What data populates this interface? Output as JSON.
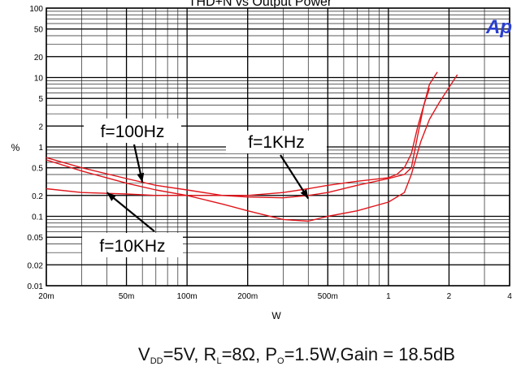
{
  "chart_data": {
    "type": "line",
    "title": "THD+N vs Output Power",
    "xlabel": "W",
    "ylabel": "%",
    "xscale": "log",
    "yscale": "log",
    "xlim": [
      0.02,
      4
    ],
    "ylim": [
      0.01,
      100
    ],
    "x_ticks": [
      {
        "value": 0.02,
        "label": "20m"
      },
      {
        "value": 0.05,
        "label": "50m"
      },
      {
        "value": 0.1,
        "label": "100m"
      },
      {
        "value": 0.2,
        "label": "200m"
      },
      {
        "value": 0.5,
        "label": "500m"
      },
      {
        "value": 1,
        "label": "1"
      },
      {
        "value": 2,
        "label": "2"
      },
      {
        "value": 4,
        "label": "4"
      }
    ],
    "y_ticks": [
      {
        "value": 0.01,
        "label": "0.01"
      },
      {
        "value": 0.02,
        "label": "0.02"
      },
      {
        "value": 0.05,
        "label": "0.05"
      },
      {
        "value": 0.1,
        "label": "0.1"
      },
      {
        "value": 0.2,
        "label": "0.2"
      },
      {
        "value": 0.5,
        "label": "0.5"
      },
      {
        "value": 1,
        "label": "1"
      },
      {
        "value": 2,
        "label": "2"
      },
      {
        "value": 5,
        "label": "5"
      },
      {
        "value": 10,
        "label": "10"
      },
      {
        "value": 20,
        "label": "20"
      },
      {
        "value": 50,
        "label": "50"
      },
      {
        "value": 100,
        "label": "100"
      }
    ],
    "grid": true,
    "line_color": "#e0151b",
    "logo": "Ap",
    "series": [
      {
        "name": "f=100Hz",
        "x": [
          0.02,
          0.03,
          0.05,
          0.07,
          0.1,
          0.15,
          0.2,
          0.3,
          0.4,
          0.5,
          0.7,
          1.0,
          1.2,
          1.3,
          1.4,
          1.5,
          1.6,
          1.75
        ],
        "y": [
          0.7,
          0.5,
          0.35,
          0.28,
          0.24,
          0.2,
          0.19,
          0.185,
          0.2,
          0.22,
          0.28,
          0.35,
          0.4,
          0.5,
          1.5,
          4.0,
          8.0,
          12
        ]
      },
      {
        "name": "f=1KHz",
        "x": [
          0.02,
          0.03,
          0.05,
          0.07,
          0.1,
          0.15,
          0.2,
          0.3,
          0.4,
          0.5,
          0.7,
          1.0,
          1.2,
          1.3,
          1.45,
          1.6,
          1.8,
          2.2
        ],
        "y": [
          0.65,
          0.45,
          0.3,
          0.24,
          0.2,
          0.15,
          0.12,
          0.09,
          0.085,
          0.1,
          0.12,
          0.16,
          0.22,
          0.4,
          1.2,
          2.5,
          4.5,
          11
        ]
      },
      {
        "name": "f=10KHz",
        "x": [
          0.02,
          0.03,
          0.05,
          0.07,
          0.1,
          0.15,
          0.2,
          0.3,
          0.4,
          0.5,
          0.7,
          1.0,
          1.1,
          1.2,
          1.3,
          1.4,
          1.5,
          1.6
        ],
        "y": [
          0.25,
          0.22,
          0.21,
          0.2,
          0.2,
          0.2,
          0.2,
          0.22,
          0.25,
          0.28,
          0.32,
          0.36,
          0.4,
          0.5,
          0.8,
          2.0,
          4.0,
          7.0
        ]
      }
    ],
    "annotations": [
      {
        "label": "f=100Hz",
        "series": "f=100Hz",
        "arrow_to": {
          "x": 0.06,
          "y": 0.31
        }
      },
      {
        "label": "f=1KHz",
        "series": "f=1KHz",
        "arrow_to": {
          "x": 0.4,
          "y": 0.18
        }
      },
      {
        "label": "f=10KHz",
        "series": "f=10KHz",
        "arrow_to": {
          "x": 0.04,
          "y": 0.22
        }
      }
    ]
  },
  "conditions": {
    "v": "V",
    "v_sub": "DD",
    "v_val": "=5V, ",
    "r": "R",
    "r_sub": "L",
    "r_val": "=8Ω, ",
    "p": "P",
    "p_sub": "O",
    "p_val": "=1.5W,Gain = 18.5dB"
  }
}
